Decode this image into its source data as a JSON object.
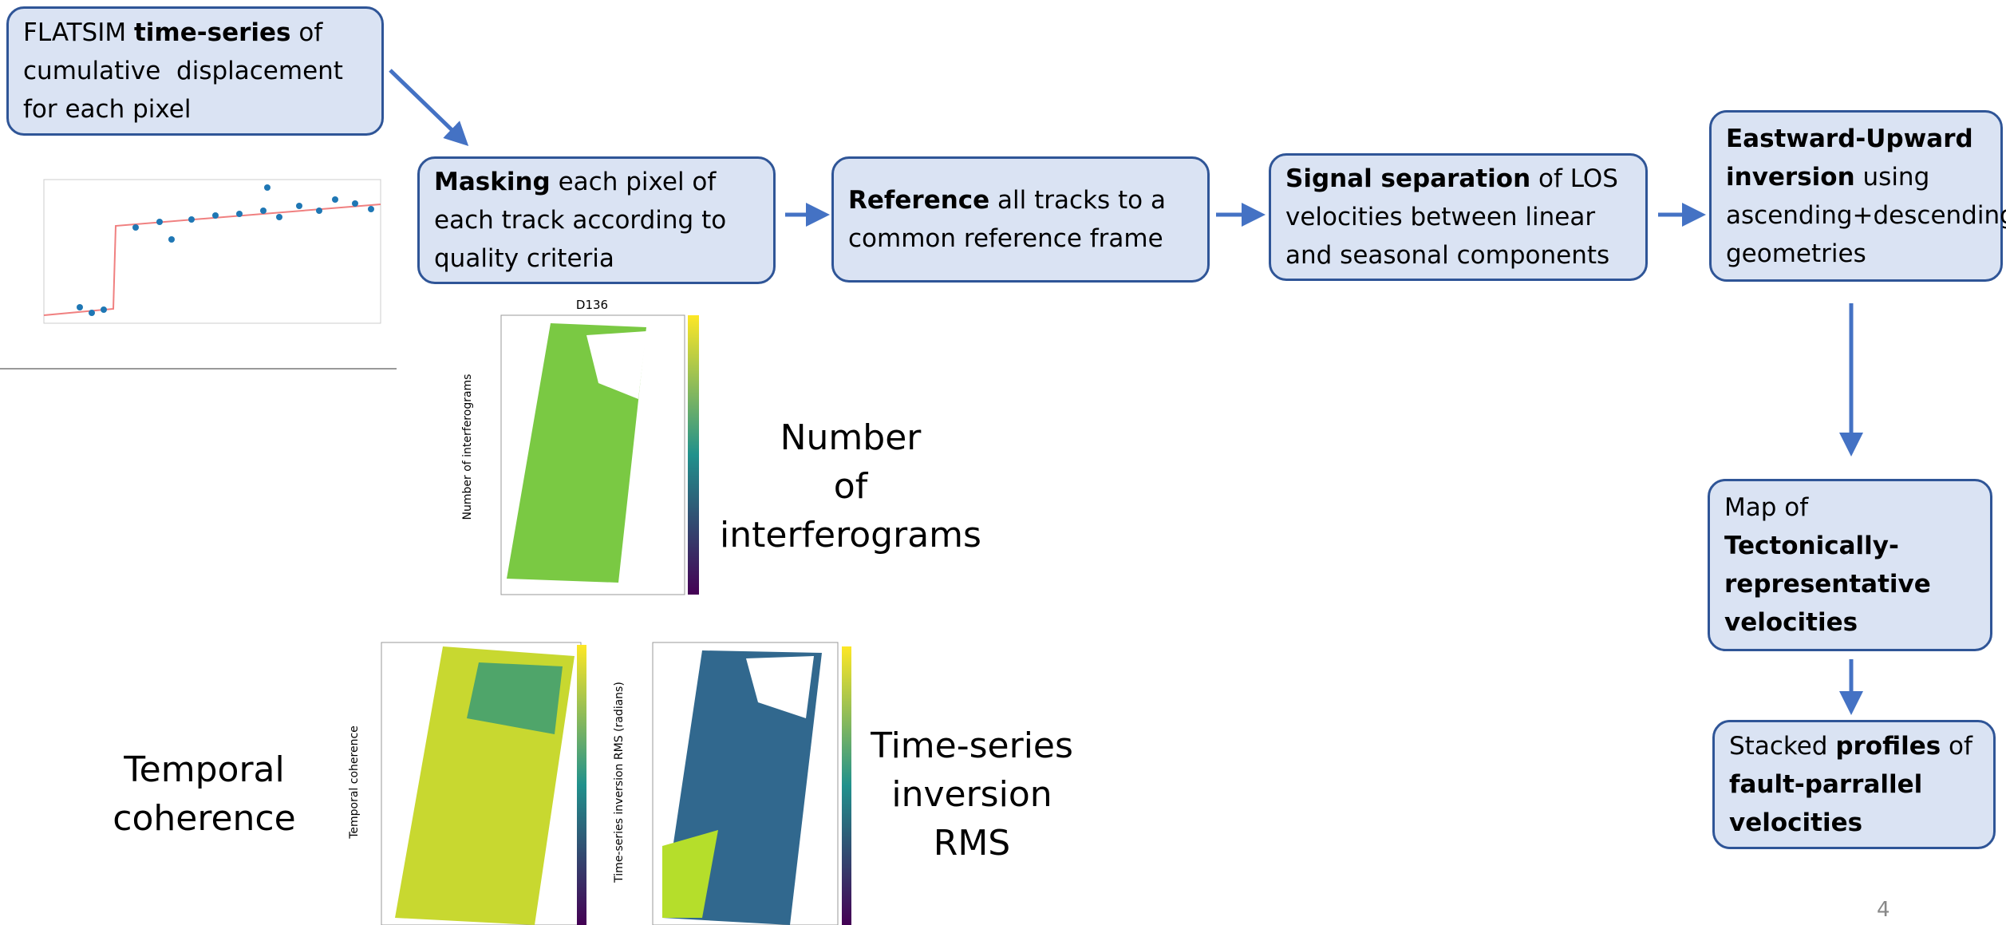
{
  "nodes": [
    {
      "runs": [
        {
          "text": "FLATSIM ",
          "bold": false
        },
        {
          "text": "time-series",
          "bold": true
        },
        {
          "text": " of cumulative  displacement for each pixel",
          "bold": false
        }
      ]
    },
    {
      "runs": [
        {
          "text": "Masking",
          "bold": true
        },
        {
          "text": " each pixel of each track according to  quality criteria",
          "bold": false
        }
      ]
    },
    {
      "runs": [
        {
          "text": "Reference",
          "bold": true
        },
        {
          "text": " all tracks to a common reference frame",
          "bold": false
        }
      ]
    },
    {
      "runs": [
        {
          "text": "Signal separation",
          "bold": true
        },
        {
          "text": " of LOS velocities between linear and seasonal components",
          "bold": false
        }
      ]
    },
    {
      "runs": [
        {
          "text": "Eastward-Upward  inversion",
          "bold": true
        },
        {
          "text": " using ascending+descending geometries",
          "bold": false
        }
      ]
    },
    {
      "runs": [
        {
          "text": "Map of ",
          "bold": false
        },
        {
          "text": "Tectonically-representative velocities",
          "bold": true
        }
      ]
    },
    {
      "runs": [
        {
          "text": "Stacked ",
          "bold": false
        },
        {
          "text": "profiles",
          "bold": true
        },
        {
          "text": " of ",
          "bold": false
        },
        {
          "text": "fault-parrallel velocities",
          "bold": true
        }
      ]
    }
  ],
  "labels": [
    {
      "lines": [
        "Number",
        "of",
        "interferograms"
      ]
    },
    {
      "lines": [
        "Temporal",
        "coherence"
      ]
    },
    {
      "lines": [
        "Time-series",
        "inversion",
        "RMS"
      ]
    }
  ],
  "plots": {
    "map_title": "D136",
    "map_axis": "Number of interferograms",
    "coherence_axis": "Temporal coherence",
    "rms_axis": "Time-series inversion RMS (radians)"
  },
  "page_number": "4"
}
